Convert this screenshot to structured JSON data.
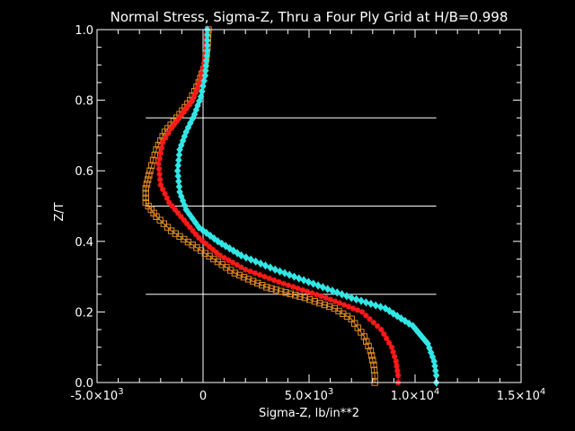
{
  "chart_data": {
    "type": "line",
    "title": "Normal Stress, Sigma-Z, Thru a Four Ply Grid at H/B=0.998",
    "xlabel": "Sigma-Z,  lb/in**2",
    "ylabel": "Z/T",
    "xlim": [
      -5000,
      15000
    ],
    "ylim": [
      0.0,
      1.0
    ],
    "grid": false,
    "x_ticks": [
      {
        "value": -5000,
        "mant": "-5.0",
        "exp": "3"
      },
      {
        "value": 0,
        "mant": "0",
        "exp": ""
      },
      {
        "value": 5000,
        "mant": "5.0",
        "exp": "3"
      },
      {
        "value": 10000,
        "mant": "1.0",
        "exp": "4"
      },
      {
        "value": 15000,
        "mant": "1.5",
        "exp": "4"
      }
    ],
    "x_tick_base": "×10",
    "y_ticks": [
      "0.0",
      "0.2",
      "0.4",
      "0.6",
      "0.8",
      "1.0"
    ],
    "y_tick_values": [
      0.0,
      0.2,
      0.4,
      0.6,
      0.8,
      1.0
    ],
    "ply_lines": [
      {
        "y": 0.25,
        "x_from": -2700,
        "x_to": 11000
      },
      {
        "y": 0.5,
        "x_from": -2700,
        "x_to": 11000
      },
      {
        "y": 0.75,
        "x_from": -2700,
        "x_to": 11000
      }
    ],
    "series": [
      {
        "color": "#e08a24",
        "marker": "square",
        "points": [
          [
            8100,
            0.0
          ],
          [
            8100,
            0.02
          ],
          [
            8050,
            0.05
          ],
          [
            7900,
            0.09
          ],
          [
            7600,
            0.13
          ],
          [
            7000,
            0.18
          ],
          [
            6200,
            0.21
          ],
          [
            4800,
            0.24
          ],
          [
            3000,
            0.27
          ],
          [
            1500,
            0.31
          ],
          [
            500,
            0.35
          ],
          [
            -500,
            0.39
          ],
          [
            -1500,
            0.43
          ],
          [
            -2200,
            0.47
          ],
          [
            -2700,
            0.51
          ],
          [
            -2700,
            0.55
          ],
          [
            -2500,
            0.6
          ],
          [
            -2200,
            0.66
          ],
          [
            -1800,
            0.71
          ],
          [
            -1100,
            0.76
          ],
          [
            -600,
            0.8
          ],
          [
            -200,
            0.85
          ],
          [
            100,
            0.9
          ],
          [
            200,
            0.95
          ],
          [
            250,
            1.0
          ]
        ]
      },
      {
        "color": "#ff1a1a",
        "marker": "asterisk",
        "points": [
          [
            9200,
            0.0
          ],
          [
            9200,
            0.02
          ],
          [
            9100,
            0.06
          ],
          [
            8900,
            0.1
          ],
          [
            8400,
            0.15
          ],
          [
            7500,
            0.2
          ],
          [
            5800,
            0.24
          ],
          [
            3800,
            0.28
          ],
          [
            2000,
            0.32
          ],
          [
            800,
            0.36
          ],
          [
            -200,
            0.41
          ],
          [
            -900,
            0.46
          ],
          [
            -1600,
            0.51
          ],
          [
            -2000,
            0.56
          ],
          [
            -2100,
            0.62
          ],
          [
            -1900,
            0.68
          ],
          [
            -1500,
            0.72
          ],
          [
            -1000,
            0.76
          ],
          [
            -500,
            0.8
          ],
          [
            -100,
            0.86
          ],
          [
            100,
            0.92
          ],
          [
            200,
            1.0
          ]
        ]
      },
      {
        "color": "#33e6e6",
        "marker": "diamond",
        "points": [
          [
            11000,
            0.0
          ],
          [
            11000,
            0.02
          ],
          [
            10900,
            0.06
          ],
          [
            10600,
            0.11
          ],
          [
            9900,
            0.16
          ],
          [
            8600,
            0.21
          ],
          [
            7000,
            0.24
          ],
          [
            5200,
            0.28
          ],
          [
            3400,
            0.32
          ],
          [
            1800,
            0.36
          ],
          [
            700,
            0.4
          ],
          [
            -200,
            0.44
          ],
          [
            -800,
            0.49
          ],
          [
            -1100,
            0.54
          ],
          [
            -1200,
            0.6
          ],
          [
            -1100,
            0.66
          ],
          [
            -800,
            0.71
          ],
          [
            -400,
            0.76
          ],
          [
            -100,
            0.81
          ],
          [
            100,
            0.87
          ],
          [
            200,
            0.94
          ],
          [
            200,
            1.0
          ]
        ]
      }
    ]
  }
}
